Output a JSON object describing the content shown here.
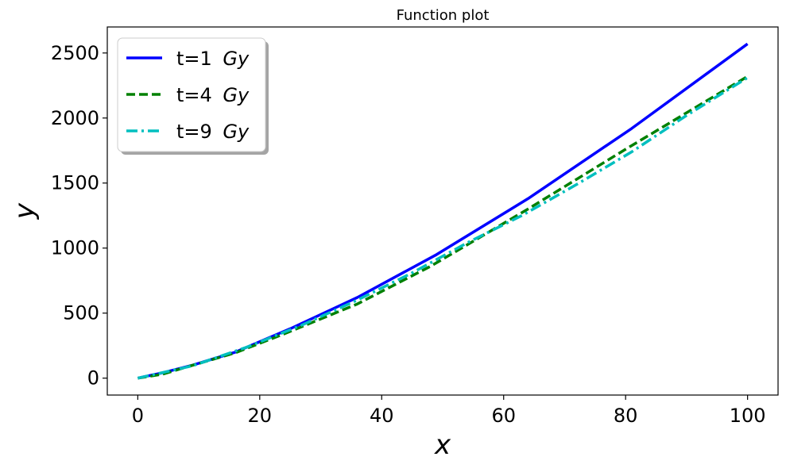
{
  "chart_data": {
    "type": "line",
    "title": "Function plot",
    "xlabel": "x",
    "ylabel": "y",
    "xlim": [
      -5,
      105
    ],
    "ylim": [
      -130,
      2700
    ],
    "xticks": [
      0,
      20,
      40,
      60,
      80,
      100
    ],
    "yticks": [
      0,
      500,
      1000,
      1500,
      2000,
      2500
    ],
    "grid": false,
    "legend_position": "top-left",
    "series": [
      {
        "name": "t=1 Gy",
        "label_plain": "t=1 ",
        "label_italic": "Gy",
        "color": "#0000ff",
        "style": "solid",
        "x": [
          0,
          1,
          4,
          9,
          16,
          25,
          36,
          49,
          64,
          81,
          100
        ],
        "y": [
          0,
          10,
          40,
          100,
          200,
          380,
          620,
          950,
          1380,
          1920,
          2570
        ]
      },
      {
        "name": "t=4 Gy",
        "label_plain": "t=4 ",
        "label_italic": "Gy",
        "color": "#008000",
        "style": "dashed",
        "x": [
          0,
          4,
          8,
          16,
          24,
          36,
          48,
          64,
          80,
          100
        ],
        "y": [
          0,
          30,
          85,
          195,
          340,
          570,
          860,
          1300,
          1760,
          2320
        ]
      },
      {
        "name": "t=9 Gy",
        "label_plain": "t=9 ",
        "label_italic": "Gy",
        "color": "#00bfbf",
        "style": "dashdot",
        "x": [
          0,
          9,
          18,
          27,
          36,
          45,
          54,
          63,
          72,
          81,
          90,
          100
        ],
        "y": [
          0,
          95,
          240,
          410,
          600,
          810,
          1040,
          1250,
          1490,
          1740,
          2020,
          2310
        ]
      }
    ]
  }
}
